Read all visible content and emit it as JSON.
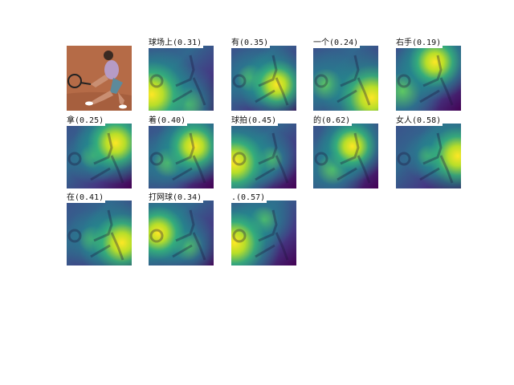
{
  "colors": {
    "viridis_low": "#440154",
    "viridis_mid": "#21918c",
    "viridis_high": "#fde725",
    "court": "#b56b47"
  },
  "original_image": {
    "description_icon": "tennis-player-photo"
  },
  "attention_maps": [
    {
      "word": "球场上(0.31)",
      "peak": [
        0.05,
        0.75
      ],
      "second": [
        0.6,
        0.9
      ]
    },
    {
      "word": "有(0.35)",
      "peak": [
        0.7,
        0.6
      ],
      "second": [
        0.3,
        0.5
      ]
    },
    {
      "word": "一个(0.24)",
      "peak": [
        0.9,
        0.8
      ],
      "second": [
        0.2,
        0.6
      ]
    },
    {
      "word": "右手(0.19)",
      "peak": [
        0.6,
        0.25
      ],
      "second": [
        0.1,
        0.7
      ]
    },
    {
      "word": "拿(0.25)",
      "peak": [
        0.75,
        0.3
      ],
      "second": [
        0.4,
        0.5
      ]
    },
    {
      "word": "着(0.40)",
      "peak": [
        0.7,
        0.35
      ],
      "second": [
        0.3,
        0.6
      ]
    },
    {
      "word": "球拍(0.45)",
      "peak": [
        0.05,
        0.6
      ],
      "second": [
        0.6,
        0.55
      ]
    },
    {
      "word": "的(0.62)",
      "peak": [
        0.6,
        0.35
      ],
      "second": [
        0.3,
        0.7
      ]
    },
    {
      "word": "女人(0.58)",
      "peak": [
        0.95,
        0.5
      ],
      "second": [
        0.5,
        0.5
      ]
    },
    {
      "word": "在(0.41)",
      "peak": [
        0.85,
        0.65
      ],
      "second": [
        0.4,
        0.6
      ]
    },
    {
      "word": "打网球(0.34)",
      "peak": [
        0.15,
        0.5
      ],
      "second": [
        0.6,
        0.7
      ]
    },
    {
      "word": ".(0.57)",
      "peak": [
        0.05,
        0.65
      ],
      "second": [
        0.5,
        0.3
      ]
    }
  ]
}
